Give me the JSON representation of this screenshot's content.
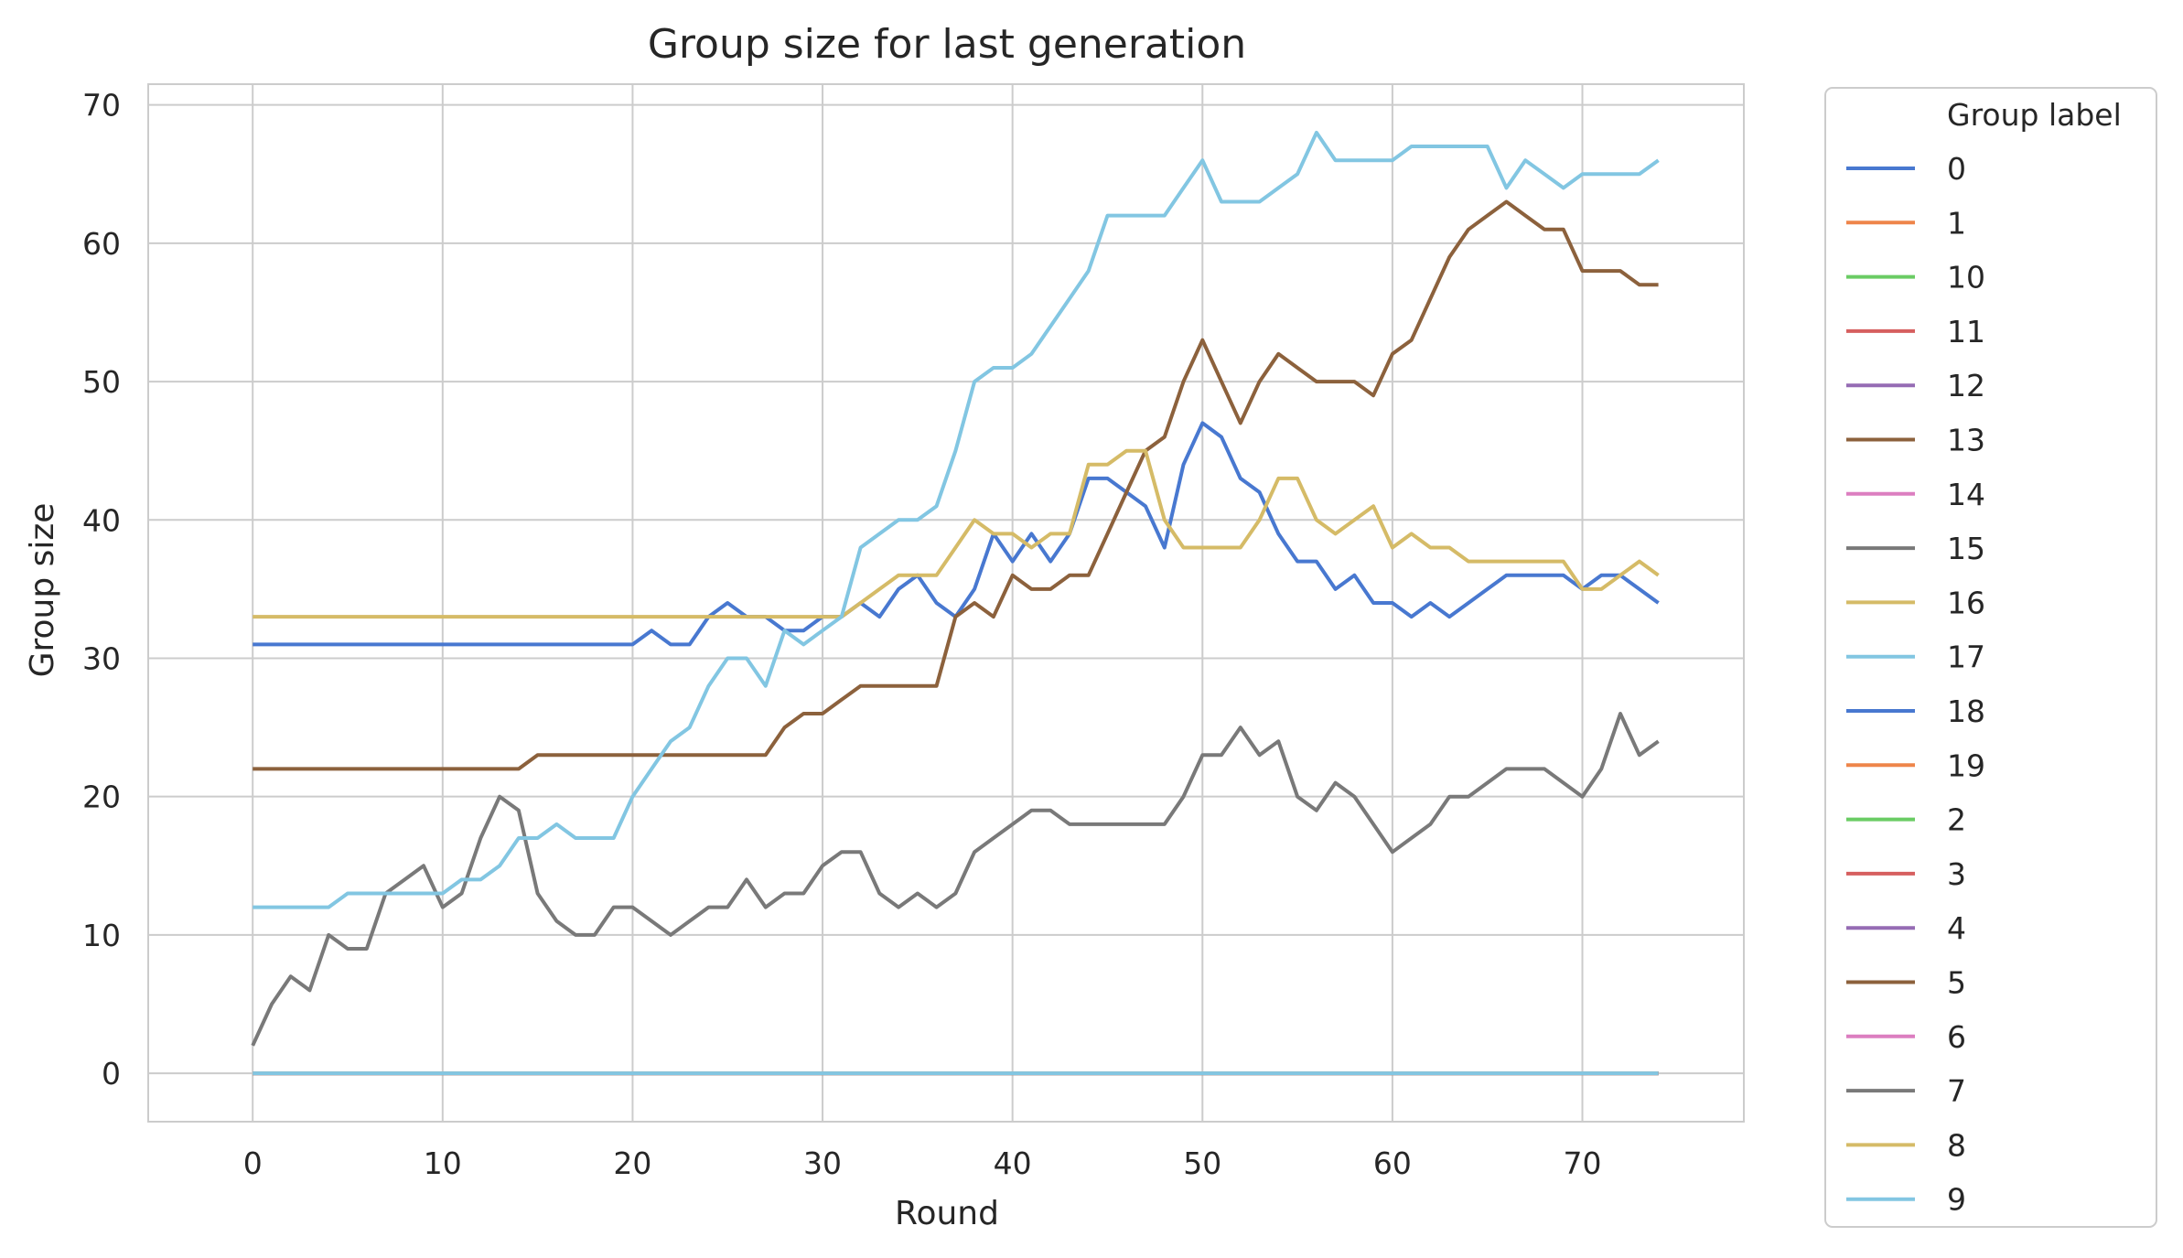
{
  "chart_data": {
    "type": "line",
    "title": "Group size for last generation",
    "xlabel": "Round",
    "ylabel": "Group size",
    "xlim": [
      -5.5,
      78.5
    ],
    "ylim": [
      -3.5,
      71.5
    ],
    "xticks": [
      0,
      10,
      20,
      30,
      40,
      50,
      60,
      70
    ],
    "yticks": [
      0,
      10,
      20,
      30,
      40,
      50,
      60,
      70
    ],
    "grid": true,
    "legend": {
      "title": "Group label",
      "placement": "outside-right"
    },
    "legend_order": [
      "0",
      "1",
      "10",
      "11",
      "12",
      "13",
      "14",
      "15",
      "16",
      "17",
      "18",
      "19",
      "2",
      "3",
      "4",
      "5",
      "6",
      "7",
      "8",
      "9"
    ],
    "colors": {
      "0": "#4878d0",
      "1": "#ee854a",
      "10": "#6acc64",
      "11": "#d65f5f",
      "12": "#956cb4",
      "13": "#8c613c",
      "14": "#dc7ec0",
      "15": "#797979",
      "16": "#d5bb67",
      "17": "#82c6e2",
      "18": "#4878d0",
      "19": "#ee854a",
      "2": "#6acc64",
      "3": "#d65f5f",
      "4": "#956cb4",
      "5": "#8c613c",
      "6": "#dc7ec0",
      "7": "#797979",
      "8": "#d5bb67",
      "9": "#82c6e2"
    },
    "rounds": 75,
    "zero_series": [
      "0",
      "1",
      "10",
      "11",
      "12",
      "13",
      "14",
      "15",
      "16",
      "17",
      "19",
      "2",
      "3",
      "4",
      "6",
      "8",
      "9"
    ],
    "series": [
      {
        "name": "18",
        "values": [
          31,
          31,
          31,
          31,
          31,
          31,
          31,
          31,
          31,
          31,
          31,
          31,
          31,
          31,
          31,
          31,
          31,
          31,
          31,
          31,
          31,
          32,
          31,
          31,
          33,
          34,
          33,
          33,
          32,
          32,
          33,
          33,
          34,
          33,
          35,
          36,
          34,
          33,
          35,
          39,
          37,
          39,
          37,
          39,
          43,
          43,
          42,
          41,
          38,
          44,
          47,
          46,
          43,
          42,
          39,
          37,
          37,
          35,
          36,
          34,
          34,
          33,
          34,
          33,
          34,
          35,
          36,
          36,
          36,
          36,
          35,
          36,
          36,
          35,
          34
        ]
      },
      {
        "name": "5",
        "values": [
          22,
          22,
          22,
          22,
          22,
          22,
          22,
          22,
          22,
          22,
          22,
          22,
          22,
          22,
          22,
          23,
          23,
          23,
          23,
          23,
          23,
          23,
          23,
          23,
          23,
          23,
          23,
          23,
          25,
          26,
          26,
          27,
          28,
          28,
          28,
          28,
          28,
          33,
          34,
          33,
          36,
          35,
          35,
          36,
          36,
          39,
          42,
          45,
          46,
          50,
          53,
          50,
          47,
          50,
          52,
          51,
          50,
          50,
          50,
          49,
          52,
          53,
          56,
          59,
          61,
          62,
          63,
          62,
          61,
          61,
          58,
          58,
          58,
          57,
          57
        ]
      },
      {
        "name": "7",
        "values": [
          2,
          5,
          7,
          6,
          10,
          9,
          9,
          13,
          14,
          15,
          12,
          13,
          17,
          20,
          19,
          13,
          11,
          10,
          10,
          12,
          12,
          11,
          10,
          11,
          12,
          12,
          14,
          12,
          13,
          13,
          15,
          16,
          16,
          13,
          12,
          13,
          12,
          13,
          16,
          17,
          18,
          19,
          19,
          18,
          18,
          18,
          18,
          18,
          18,
          20,
          23,
          23,
          25,
          23,
          24,
          20,
          19,
          21,
          20,
          18,
          16,
          17,
          18,
          20,
          20,
          21,
          22,
          22,
          22,
          21,
          20,
          22,
          26,
          23,
          24
        ]
      },
      {
        "name": "16",
        "values": [
          33,
          33,
          33,
          33,
          33,
          33,
          33,
          33,
          33,
          33,
          33,
          33,
          33,
          33,
          33,
          33,
          33,
          33,
          33,
          33,
          33,
          33,
          33,
          33,
          33,
          33,
          33,
          33,
          33,
          33,
          33,
          33,
          34,
          35,
          36,
          36,
          36,
          38,
          40,
          39,
          39,
          38,
          39,
          39,
          44,
          44,
          45,
          45,
          40,
          38,
          38,
          38,
          38,
          40,
          43,
          43,
          40,
          39,
          40,
          41,
          38,
          39,
          38,
          38,
          37,
          37,
          37,
          37,
          37,
          37,
          35,
          35,
          36,
          37,
          36
        ]
      },
      {
        "name": "17",
        "values": [
          12,
          12,
          12,
          12,
          12,
          13,
          13,
          13,
          13,
          13,
          13,
          14,
          14,
          15,
          17,
          17,
          18,
          17,
          17,
          17,
          20,
          22,
          24,
          25,
          28,
          30,
          30,
          28,
          32,
          31,
          32,
          33,
          38,
          39,
          40,
          40,
          41,
          45,
          50,
          51,
          51,
          52,
          54,
          56,
          58,
          62,
          62,
          62,
          62,
          64,
          66,
          63,
          63,
          63,
          64,
          65,
          68,
          66,
          66,
          66,
          66,
          67,
          67,
          67,
          67,
          67,
          64,
          66,
          65,
          64,
          65,
          65,
          65,
          65,
          66
        ]
      }
    ]
  }
}
